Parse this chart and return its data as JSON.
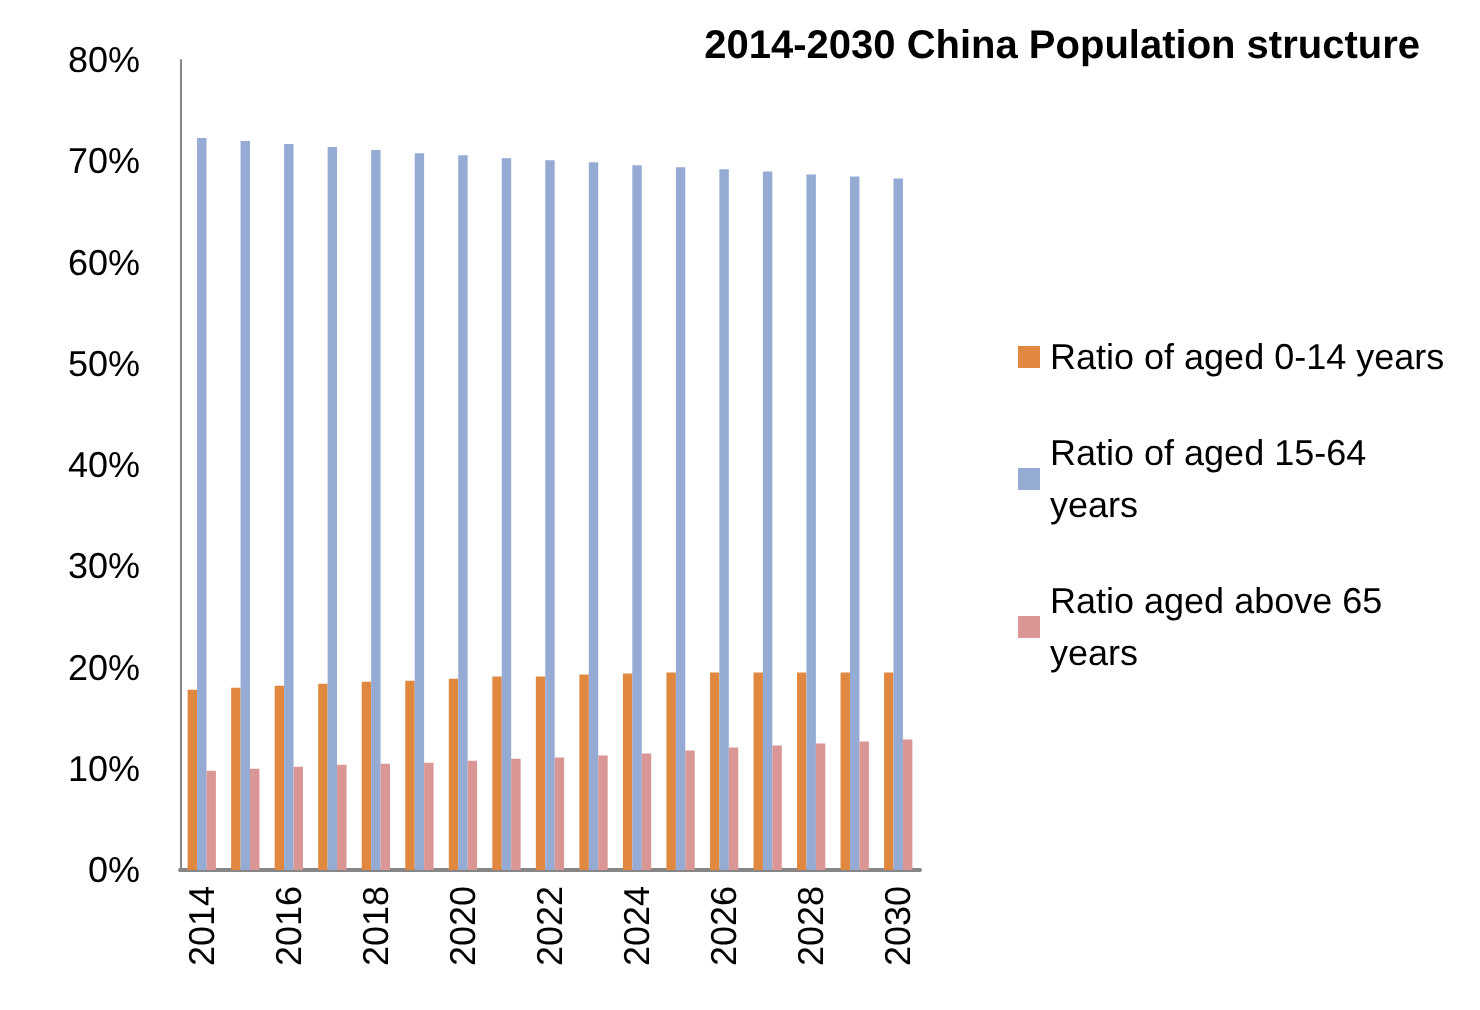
{
  "chart_data": {
    "type": "bar",
    "title": "2014-2030 China Population structure",
    "categories": [
      "2014",
      null,
      "2016",
      null,
      "2018",
      null,
      "2020",
      null,
      "2022",
      null,
      "2024",
      null,
      "2026",
      null,
      "2028",
      null,
      "2030"
    ],
    "series": [
      {
        "name": "Ratio of aged 0-14 years",
        "color": "#e0883f",
        "values": [
          17.8,
          18.0,
          18.2,
          18.4,
          18.6,
          18.7,
          18.9,
          19.1,
          19.1,
          19.3,
          19.4,
          19.5,
          19.5,
          19.5,
          19.5,
          19.5,
          19.5
        ]
      },
      {
        "name": "Ratio of aged 15-64 years",
        "color": "#95abd4",
        "values": [
          72.3,
          72.0,
          71.7,
          71.4,
          71.1,
          70.8,
          70.6,
          70.3,
          70.1,
          69.9,
          69.6,
          69.4,
          69.2,
          69.0,
          68.7,
          68.5,
          68.3
        ]
      },
      {
        "name": "Ratio aged above 65 years",
        "color": "#d99694",
        "values": [
          9.8,
          10.0,
          10.2,
          10.4,
          10.5,
          10.6,
          10.8,
          11.0,
          11.1,
          11.3,
          11.5,
          11.8,
          12.1,
          12.3,
          12.5,
          12.7,
          12.9
        ]
      }
    ],
    "ylim": [
      0,
      80
    ],
    "yticks": [
      {
        "value": 0,
        "label": "0%"
      },
      {
        "value": 10,
        "label": "10%"
      },
      {
        "value": 20,
        "label": "20%"
      },
      {
        "value": 30,
        "label": "30%"
      },
      {
        "value": 40,
        "label": "40%"
      },
      {
        "value": 50,
        "label": "50%"
      },
      {
        "value": 60,
        "label": "60%"
      },
      {
        "value": 70,
        "label": "70%"
      },
      {
        "value": 80,
        "label": "80%"
      }
    ],
    "grid": false,
    "legend": "right"
  }
}
